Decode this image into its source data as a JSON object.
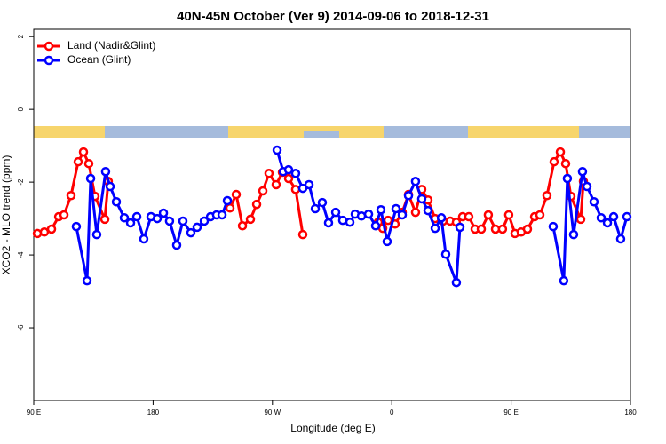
{
  "chart_data": {
    "type": "line",
    "title": "40N-45N October (Ver 9)   2014-09-06 to 2018-12-31",
    "x_label": "Longitude (deg E)",
    "y_label": "XCO2 - MLO trend (ppm)",
    "xlim": [
      90,
      540
    ],
    "xticks": [
      {
        "value": 90,
        "label": "90 E"
      },
      180,
      {
        "value": 270,
        "label": "90 W"
      },
      {
        "value": 360,
        "label": "0"
      },
      {
        "value": 450,
        "label": "90 E"
      },
      {
        "value": 540,
        "label": "180"
      }
    ],
    "ylim": [
      -8,
      2.2
    ],
    "yticks": [
      2,
      0,
      -2,
      -4,
      -6
    ],
    "legend": "top-left",
    "series": [
      {
        "name": "Land (Nadir&Glint)",
        "color": "#ff0000",
        "x": [
          92.7,
          98,
          103.4,
          108.8,
          112.8,
          118.1,
          123.5,
          127.5,
          131.5,
          136.2,
          143.6,
          146.2,
          null,
          238,
          242.7,
          247.4,
          253.4,
          258.1,
          262.8,
          267.4,
          272.8,
          277.5,
          282.2,
          287.5,
          292.9,
          null,
          349.8,
          353.2,
          357.2,
          362.5,
          367.9,
          372.6,
          377.9,
          382.6,
          387.3,
          392.7,
          398.7,
          404,
          408.7,
          413.4,
          418.1,
          422.8,
          427.5,
          432.8,
          438.2,
          443.5,
          448.2,
          452.9,
          457.6,
          462.3,
          467.7,
          471.7,
          477,
          482.4,
          487.1,
          491.1,
          495.1,
          502.5,
          504.5
        ],
        "values": [
          -3.41,
          -3.37,
          -3.29,
          -2.95,
          -2.9,
          -2.37,
          -1.44,
          -1.17,
          -1.49,
          -2.39,
          -3.02,
          -1.98,
          null,
          -2.71,
          -2.34,
          -3.2,
          -3.02,
          -2.61,
          -2.24,
          -1.76,
          -2.07,
          -1.73,
          -1.9,
          -2.2,
          -3.44,
          null,
          -3.1,
          -3.27,
          -3.05,
          -3.15,
          -2.83,
          -2.34,
          -2.83,
          -2.2,
          -2.49,
          -3.0,
          -3.07,
          -3.07,
          -3.1,
          -2.95,
          -2.95,
          -3.29,
          -3.29,
          -2.9,
          -3.29,
          -3.29,
          -2.9,
          -3.41,
          -3.37,
          -3.29,
          -2.95,
          -2.9,
          -2.37,
          -1.44,
          -1.17,
          -1.49,
          -2.39,
          -3.02,
          -1.98
        ]
      },
      {
        "name": "Ocean (Glint)",
        "color": "#0000ff",
        "x": [
          122.1,
          130.2,
          132.9,
          137.5,
          144.2,
          147.6,
          152.3,
          158.3,
          163,
          167.7,
          173,
          178.4,
          183.1,
          187.8,
          192.4,
          197.8,
          202.5,
          208.5,
          213.2,
          218.6,
          223.3,
          227.9,
          232,
          236,
          null,
          273.5,
          278.2,
          282.2,
          287.5,
          292.9,
          297.6,
          302.3,
          307.6,
          312.3,
          317.7,
          323,
          328.4,
          332.4,
          337.1,
          342.5,
          347.8,
          351.8,
          356.5,
          363.2,
          367.9,
          372.6,
          377.9,
          382.6,
          387.3,
          392.7,
          397.4,
          400.7,
          408.7,
          411.4,
          null,
          481.7,
          489.7,
          492.4,
          497.1,
          503.8,
          507.2,
          512.5,
          517.9,
          522.6,
          527.3,
          532.6,
          537.3
        ],
        "values": [
          -3.22,
          -4.71,
          -1.9,
          -3.44,
          -1.71,
          -2.12,
          -2.54,
          -2.98,
          -3.12,
          -2.95,
          -3.56,
          -2.95,
          -3.0,
          -2.85,
          -3.07,
          -3.73,
          -3.07,
          -3.39,
          -3.24,
          -3.07,
          -2.95,
          -2.9,
          -2.9,
          -2.51,
          null,
          -1.12,
          -1.71,
          -1.66,
          -1.76,
          -2.17,
          -2.07,
          -2.73,
          -2.56,
          -3.12,
          -2.83,
          -3.05,
          -3.1,
          -2.88,
          -2.93,
          -2.88,
          -3.2,
          -2.76,
          -3.63,
          -2.73,
          -2.9,
          -2.37,
          -1.98,
          -2.46,
          -2.78,
          -3.27,
          -2.98,
          -3.98,
          -4.76,
          -3.24,
          null,
          -3.22,
          -4.71,
          -1.9,
          -3.44,
          -1.71,
          -2.12,
          -2.54,
          -2.98,
          -3.12,
          -2.95,
          -3.56,
          -2.95
        ]
      }
    ]
  }
}
